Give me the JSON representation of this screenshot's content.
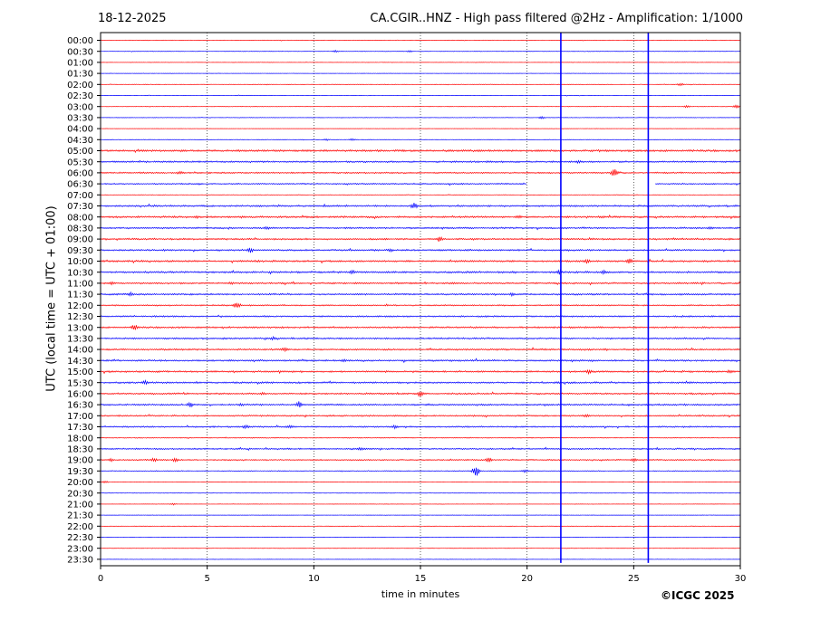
{
  "header": {
    "date": "18-12-2025",
    "title": "CA.CGIR..HNZ - High pass filtered @2Hz - Amplification: 1/1000"
  },
  "footer": {
    "copyright": "©ICGC 2025"
  },
  "chart_data": {
    "type": "line",
    "title": "CA.CGIR..HNZ - High pass filtered @2Hz - Amplification: 1/1000",
    "date": "18-12-2025",
    "xlabel": "time in minutes",
    "ylabel": "UTC (local time = UTC + 01:00)",
    "xlim": [
      0,
      30
    ],
    "xticks": [
      "0",
      "5",
      "10",
      "15",
      "20",
      "25",
      "30"
    ],
    "grid": "vertical dotted lines every 5 minutes",
    "trace_colors": [
      "#ff0000",
      "#0000ff"
    ],
    "trace_color_order": "alternating red/blue by row, starting with red at 00:00",
    "rows": [
      "00:00",
      "00:30",
      "01:00",
      "01:30",
      "02:00",
      "02:30",
      "03:00",
      "03:30",
      "04:00",
      "04:30",
      "05:00",
      "05:30",
      "06:00",
      "06:30",
      "07:00",
      "07:30",
      "08:00",
      "08:30",
      "09:00",
      "09:30",
      "10:00",
      "10:30",
      "11:00",
      "11:30",
      "12:00",
      "12:30",
      "13:00",
      "13:30",
      "14:00",
      "14:30",
      "15:00",
      "15:30",
      "16:00",
      "16:30",
      "17:00",
      "17:30",
      "18:00",
      "18:30",
      "19:00",
      "19:30",
      "20:00",
      "20:30",
      "21:00",
      "21:30",
      "22:00",
      "22:30",
      "23:00",
      "23:30"
    ],
    "noise_level": [
      0.3,
      0.3,
      0.2,
      0.2,
      0.3,
      0.3,
      0.3,
      0.3,
      0.2,
      0.3,
      1.2,
      1.0,
      0.9,
      0.8,
      0.3,
      1.0,
      1.1,
      1.0,
      1.0,
      1.0,
      1.1,
      1.1,
      1.0,
      1.0,
      0.8,
      0.9,
      1.0,
      1.0,
      1.0,
      1.0,
      1.0,
      1.0,
      1.0,
      1.0,
      0.9,
      0.9,
      0.5,
      0.9,
      0.8,
      0.5,
      0.2,
      0.2,
      0.2,
      0.2,
      0.2,
      0.2,
      0.2,
      0.2
    ],
    "events": [
      {
        "row": "00:30",
        "minute": 11.0,
        "amplitude": 1.2
      },
      {
        "row": "00:30",
        "minute": 14.5,
        "amplitude": 1.0
      },
      {
        "row": "02:00",
        "minute": 27.2,
        "amplitude": 1.5
      },
      {
        "row": "03:00",
        "minute": 27.5,
        "amplitude": 1.5
      },
      {
        "row": "03:00",
        "minute": 29.8,
        "amplitude": 2.0
      },
      {
        "row": "03:30",
        "minute": 20.7,
        "amplitude": 1.5
      },
      {
        "row": "04:30",
        "minute": 10.6,
        "amplitude": 1.2
      },
      {
        "row": "04:30",
        "minute": 11.8,
        "amplitude": 1.2
      },
      {
        "row": "05:30",
        "minute": 22.4,
        "amplitude": 2.0
      },
      {
        "row": "06:00",
        "minute": 3.7,
        "amplitude": 2.0
      },
      {
        "row": "06:00",
        "minute": 24.1,
        "amplitude": 6.0
      },
      {
        "row": "07:30",
        "minute": 14.7,
        "amplitude": 4.0
      },
      {
        "row": "08:00",
        "minute": 4.5,
        "amplitude": 2.0
      },
      {
        "row": "08:00",
        "minute": 19.6,
        "amplitude": 2.5
      },
      {
        "row": "08:30",
        "minute": 7.8,
        "amplitude": 2.0
      },
      {
        "row": "08:30",
        "minute": 28.6,
        "amplitude": 2.0
      },
      {
        "row": "09:00",
        "minute": 15.9,
        "amplitude": 3.5
      },
      {
        "row": "09:30",
        "minute": 7.0,
        "amplitude": 3.5
      },
      {
        "row": "09:30",
        "minute": 13.6,
        "amplitude": 2.0
      },
      {
        "row": "10:00",
        "minute": 22.8,
        "amplitude": 3.0
      },
      {
        "row": "10:00",
        "minute": 24.8,
        "amplitude": 3.5
      },
      {
        "row": "10:30",
        "minute": 11.8,
        "amplitude": 2.5
      },
      {
        "row": "10:30",
        "minute": 21.5,
        "amplitude": 3.0
      },
      {
        "row": "10:30",
        "minute": 23.6,
        "amplitude": 2.5
      },
      {
        "row": "11:00",
        "minute": 0.5,
        "amplitude": 2.0
      },
      {
        "row": "11:00",
        "minute": 6.1,
        "amplitude": 2.0
      },
      {
        "row": "11:30",
        "minute": 1.4,
        "amplitude": 2.5
      },
      {
        "row": "11:30",
        "minute": 19.3,
        "amplitude": 2.0
      },
      {
        "row": "12:00",
        "minute": 6.4,
        "amplitude": 4.0
      },
      {
        "row": "13:00",
        "minute": 1.6,
        "amplitude": 4.0
      },
      {
        "row": "13:30",
        "minute": 8.1,
        "amplitude": 2.0
      },
      {
        "row": "14:00",
        "minute": 8.7,
        "amplitude": 2.5
      },
      {
        "row": "14:30",
        "minute": 11.4,
        "amplitude": 2.0
      },
      {
        "row": "15:00",
        "minute": 22.9,
        "amplitude": 3.0
      },
      {
        "row": "15:00",
        "minute": 29.5,
        "amplitude": 2.0
      },
      {
        "row": "15:30",
        "minute": 2.1,
        "amplitude": 2.5
      },
      {
        "row": "16:00",
        "minute": 15.0,
        "amplitude": 4.0
      },
      {
        "row": "16:00",
        "minute": 7.6,
        "amplitude": 2.0
      },
      {
        "row": "16:30",
        "minute": 4.2,
        "amplitude": 3.0
      },
      {
        "row": "16:30",
        "minute": 9.3,
        "amplitude": 4.0
      },
      {
        "row": "16:30",
        "minute": 6.6,
        "amplitude": 2.0
      },
      {
        "row": "17:00",
        "minute": 22.8,
        "amplitude": 2.5
      },
      {
        "row": "17:30",
        "minute": 6.8,
        "amplitude": 2.5
      },
      {
        "row": "17:30",
        "minute": 8.9,
        "amplitude": 2.5
      },
      {
        "row": "17:30",
        "minute": 13.8,
        "amplitude": 2.5
      },
      {
        "row": "18:30",
        "minute": 12.2,
        "amplitude": 2.0
      },
      {
        "row": "19:00",
        "minute": 0.5,
        "amplitude": 2.0
      },
      {
        "row": "19:00",
        "minute": 2.5,
        "amplitude": 2.5
      },
      {
        "row": "19:00",
        "minute": 3.5,
        "amplitude": 2.5
      },
      {
        "row": "19:00",
        "minute": 18.2,
        "amplitude": 3.0
      },
      {
        "row": "19:00",
        "minute": 25.0,
        "amplitude": 2.0
      },
      {
        "row": "19:30",
        "minute": 17.6,
        "amplitude": 7.0
      },
      {
        "row": "19:30",
        "minute": 19.9,
        "amplitude": 2.0
      },
      {
        "row": "20:00",
        "minute": 0.2,
        "amplitude": 1.5
      },
      {
        "row": "21:00",
        "minute": 3.4,
        "amplitude": 1.2
      }
    ],
    "gaps": [
      {
        "row": "06:30",
        "start_minute": 20.0,
        "end_minute": 26.0
      }
    ],
    "vertical_spikes": [
      {
        "minute": 21.6,
        "from_row": "00:00",
        "to_row": "23:30"
      },
      {
        "minute": 25.7,
        "from_row": "00:00",
        "to_row": "23:30"
      }
    ]
  }
}
